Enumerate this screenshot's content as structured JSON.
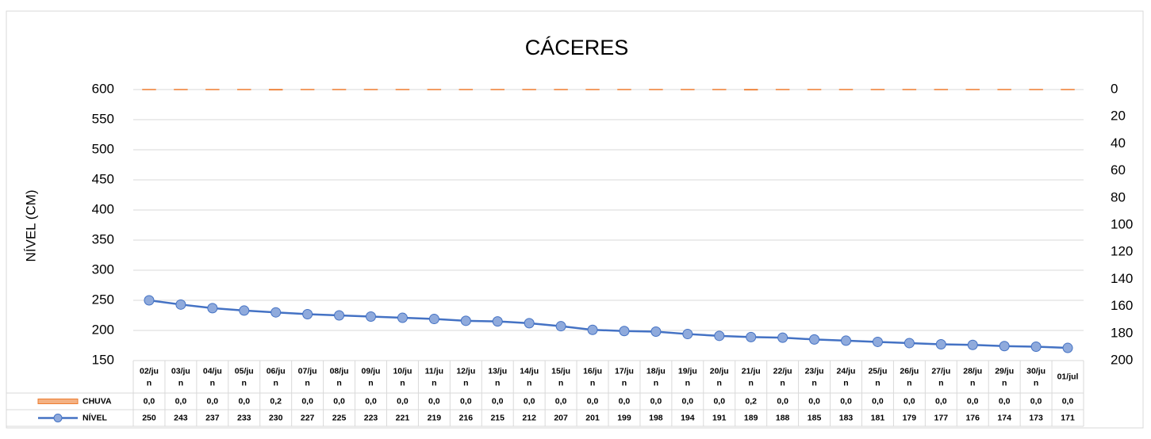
{
  "chart_data": {
    "type": "bar-line",
    "title": "CÁCERES",
    "y_label": "NÍVEL (CM)",
    "categories": [
      "02/jun",
      "03/jun",
      "04/jun",
      "05/jun",
      "06/jun",
      "07/jun",
      "08/jun",
      "09/jun",
      "10/jun",
      "11/jun",
      "12/jun",
      "13/jun",
      "14/jun",
      "15/jun",
      "16/jun",
      "17/jun",
      "18/jun",
      "19/jun",
      "20/jun",
      "21/jun",
      "22/jun",
      "23/jun",
      "24/jun",
      "25/jun",
      "26/jun",
      "27/jun",
      "28/jun",
      "29/jun",
      "30/jun",
      "01/jul"
    ],
    "series": [
      {
        "name": "CHUVA",
        "type": "bar",
        "axis": "y2",
        "color": "#ed7d31",
        "values": [
          0,
          0,
          0,
          0,
          0.2,
          0,
          0,
          0,
          0,
          0,
          0,
          0,
          0,
          0,
          0,
          0,
          0,
          0,
          0,
          0.2,
          0,
          0,
          0,
          0,
          0,
          0,
          0,
          0,
          0,
          0
        ],
        "value_labels": [
          "0,0",
          "0,0",
          "0,0",
          "0,0",
          "0,2",
          "0,0",
          "0,0",
          "0,0",
          "0,0",
          "0,0",
          "0,0",
          "0,0",
          "0,0",
          "0,0",
          "0,0",
          "0,0",
          "0,0",
          "0,0",
          "0,0",
          "0,2",
          "0,0",
          "0,0",
          "0,0",
          "0,0",
          "0,0",
          "0,0",
          "0,0",
          "0,0",
          "0,0",
          "0,0"
        ]
      },
      {
        "name": "NÍVEL",
        "type": "line",
        "axis": "y",
        "color": "#4472c4",
        "values": [
          250,
          243,
          237,
          233,
          230,
          227,
          225,
          223,
          221,
          219,
          216,
          215,
          212,
          207,
          201,
          199,
          198,
          194,
          191,
          189,
          188,
          185,
          183,
          181,
          179,
          177,
          176,
          174,
          173,
          171
        ]
      }
    ],
    "ylim": [
      150,
      600
    ],
    "yticks": [
      150,
      200,
      250,
      300,
      350,
      400,
      450,
      500,
      550,
      600
    ],
    "y2lim": [
      0,
      200
    ],
    "y2ticks": [
      0,
      20,
      40,
      60,
      80,
      100,
      120,
      140,
      160,
      180,
      200
    ],
    "y2_inverted": true,
    "grid": true,
    "data_table": true
  }
}
